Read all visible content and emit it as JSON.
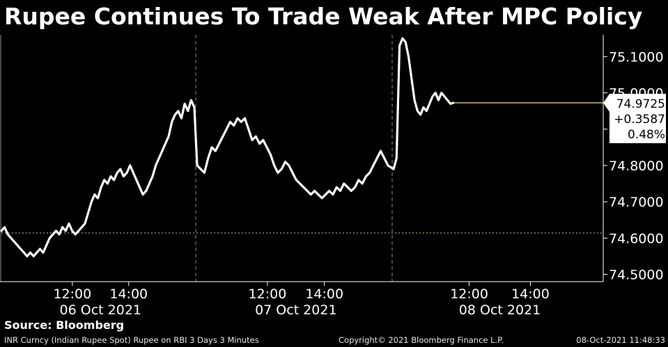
{
  "title": "Rupee Continues To Trade Weak After MPC Policy",
  "source": "Source: Bloomberg",
  "footer": {
    "left": "INR Curncy (Indian Rupee Spot) Rupee on RBI 3 Days 3 Minutes",
    "middle": "Copyright© 2021 Bloomberg Finance L.P.",
    "right": "08-Oct-2021 11:48:33"
  },
  "colors": {
    "background": "#000000",
    "line": "#ffffff",
    "current_value_line": "#f2d98a",
    "reference_line": "#e0c060"
  },
  "chart_data": {
    "type": "line",
    "title": "Rupee Continues To Trade Weak After MPC Policy",
    "ylim": [
      74.48,
      75.16
    ],
    "y_ticks": [
      74.5,
      74.6,
      74.7,
      74.8,
      74.9,
      75.0,
      75.1
    ],
    "y_tick_labels": [
      "74.5000",
      "74.6000",
      "74.7000",
      "74.8000",
      "",
      "75.0000",
      "75.1000"
    ],
    "y_axis_side": "right",
    "days": [
      {
        "label": "06 Oct 2021",
        "time_ticks": [
          "12:00",
          "14:00"
        ]
      },
      {
        "label": "07 Oct 2021",
        "time_ticks": [
          "12:00",
          "14:00"
        ]
      },
      {
        "label": "08 Oct 2021",
        "time_ticks": [
          "12:00",
          "14:00"
        ]
      }
    ],
    "previous_close_reference": 74.614,
    "last": {
      "value": "74.9725",
      "change": "+0.3587",
      "change_pct": "0.48%"
    },
    "series": [
      {
        "values": [
          74.62,
          74.63,
          74.61,
          74.6,
          74.59,
          74.58,
          74.57,
          74.56,
          74.55,
          74.56,
          74.55,
          74.56,
          74.57,
          74.56,
          74.58,
          74.6,
          74.61,
          74.62,
          74.61,
          74.63,
          74.62,
          74.64,
          74.62,
          74.61,
          74.62,
          74.63,
          74.64,
          74.67,
          74.7,
          74.72,
          74.71,
          74.74,
          74.76,
          74.75,
          74.77,
          74.76,
          74.78,
          74.79,
          74.77,
          74.78,
          74.8,
          74.78,
          74.76,
          74.74,
          74.72,
          74.73,
          74.75,
          74.77,
          74.8,
          74.82,
          74.84,
          74.86,
          74.88,
          74.92,
          74.94,
          74.95,
          74.93,
          74.97,
          74.95,
          74.98,
          74.96,
          74.8,
          74.79,
          74.78,
          74.82,
          74.85,
          74.84,
          74.86,
          74.88,
          74.9,
          74.92,
          74.91,
          74.93,
          74.92,
          74.93,
          74.9,
          74.87,
          74.88,
          74.86,
          74.87,
          74.85,
          74.83,
          74.8,
          74.78,
          74.79,
          74.81,
          74.8,
          74.78,
          74.76,
          74.75,
          74.74,
          74.73,
          74.72,
          74.73,
          74.72,
          74.71,
          74.72,
          74.73,
          74.72,
          74.74,
          74.73,
          74.75,
          74.74,
          74.73,
          74.74,
          74.76,
          74.75,
          74.77,
          74.78,
          74.8,
          74.82,
          74.84,
          74.82,
          74.8,
          74.79,
          74.82,
          75.13,
          75.15,
          75.14,
          75.1,
          75.04,
          74.98,
          74.95,
          74.94,
          74.96,
          74.95,
          74.97,
          74.99,
          75.0,
          74.98,
          75.0,
          74.99,
          74.98,
          74.97,
          74.9725
        ]
      }
    ]
  }
}
